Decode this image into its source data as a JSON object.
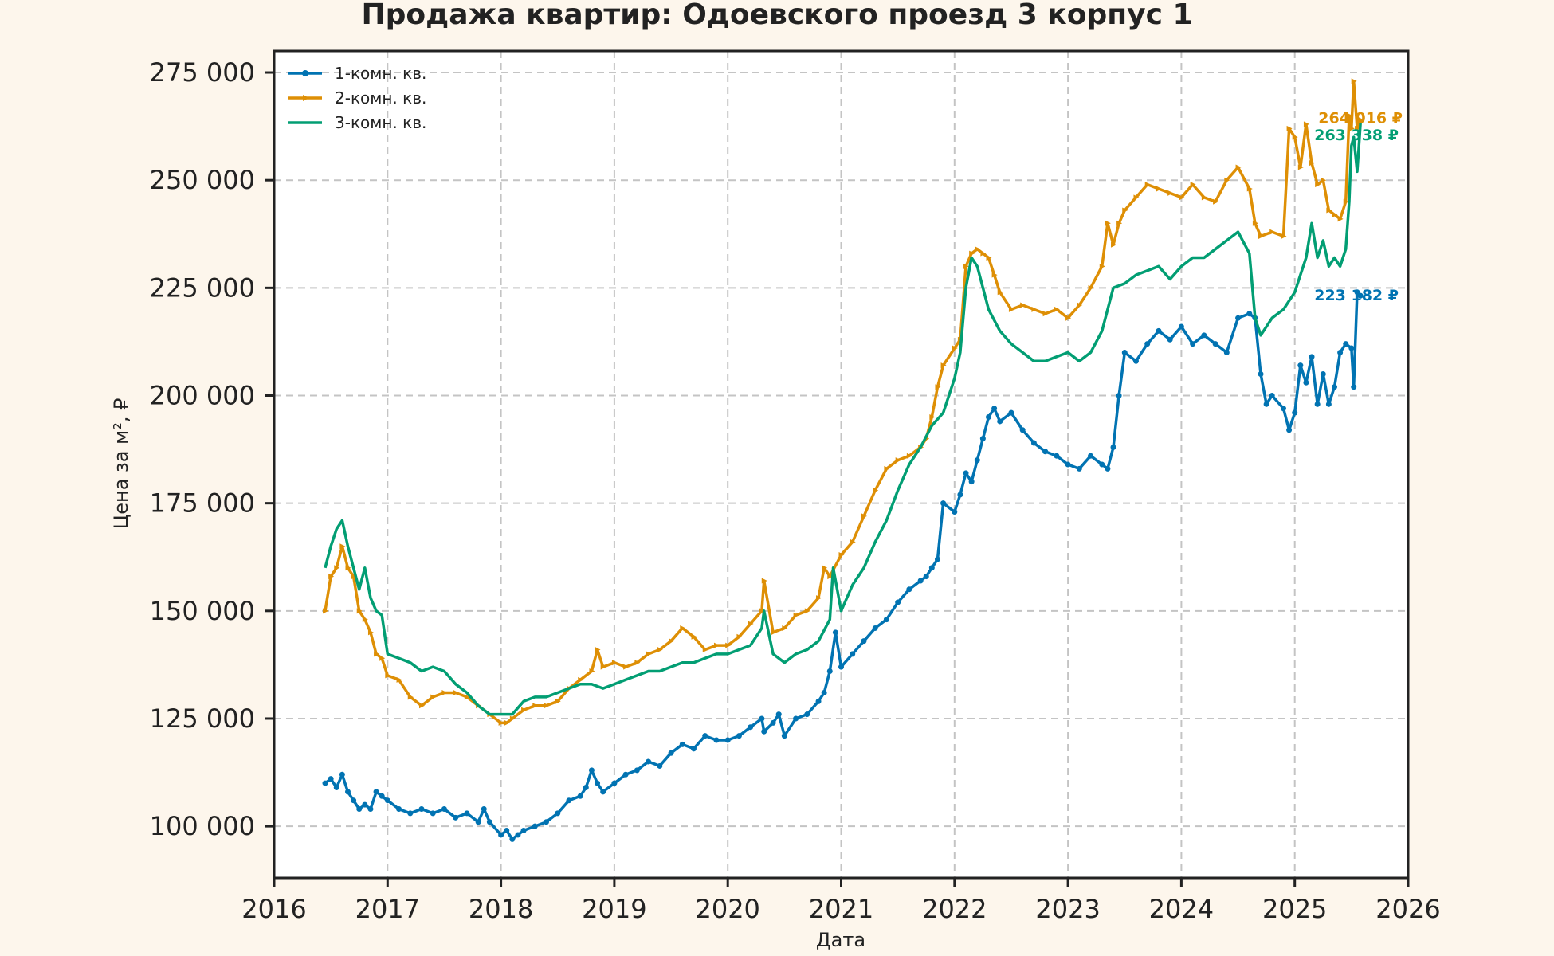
{
  "chart_data": {
    "type": "line",
    "title": "Продажа квартир: Одоевского проезд 3 корпус 1",
    "xlabel": "Дата",
    "ylabel": "Цена за м², ₽",
    "xlim": [
      2016.0,
      2026.0
    ],
    "ylim": [
      88000,
      280000
    ],
    "x_ticks": [
      2016,
      2017,
      2018,
      2019,
      2020,
      2021,
      2022,
      2023,
      2024,
      2025,
      2026
    ],
    "x_tick_labels": [
      "2016",
      "2017",
      "2018",
      "2019",
      "2020",
      "2021",
      "2022",
      "2023",
      "2024",
      "2025",
      "2026"
    ],
    "y_ticks": [
      100000,
      125000,
      150000,
      175000,
      200000,
      225000,
      250000,
      275000
    ],
    "y_tick_labels": [
      "100 000",
      "125 000",
      "150 000",
      "175 000",
      "200 000",
      "225 000",
      "250 000",
      "275 000"
    ],
    "grid": true,
    "legend_position": "top-left",
    "series": [
      {
        "name": "1-комн. кв.",
        "color": "#0173b2",
        "marker": "circle",
        "end_label": "223 182 ₽",
        "x": [
          2016.45,
          2016.5,
          2016.55,
          2016.6,
          2016.65,
          2016.7,
          2016.75,
          2016.8,
          2016.85,
          2016.9,
          2016.95,
          2017.0,
          2017.1,
          2017.2,
          2017.3,
          2017.4,
          2017.5,
          2017.6,
          2017.7,
          2017.8,
          2017.85,
          2017.9,
          2018.0,
          2018.05,
          2018.1,
          2018.15,
          2018.2,
          2018.3,
          2018.4,
          2018.5,
          2018.6,
          2018.7,
          2018.75,
          2018.8,
          2018.85,
          2018.9,
          2019.0,
          2019.1,
          2019.2,
          2019.3,
          2019.4,
          2019.5,
          2019.6,
          2019.7,
          2019.8,
          2019.9,
          2020.0,
          2020.1,
          2020.2,
          2020.3,
          2020.32,
          2020.4,
          2020.45,
          2020.5,
          2020.6,
          2020.7,
          2020.8,
          2020.85,
          2020.9,
          2020.95,
          2021.0,
          2021.1,
          2021.2,
          2021.3,
          2021.4,
          2021.5,
          2021.6,
          2021.7,
          2021.75,
          2021.8,
          2021.85,
          2021.9,
          2022.0,
          2022.05,
          2022.1,
          2022.15,
          2022.2,
          2022.25,
          2022.3,
          2022.35,
          2022.4,
          2022.5,
          2022.6,
          2022.7,
          2022.8,
          2022.9,
          2023.0,
          2023.1,
          2023.2,
          2023.3,
          2023.35,
          2023.4,
          2023.45,
          2023.5,
          2023.6,
          2023.7,
          2023.8,
          2023.9,
          2024.0,
          2024.1,
          2024.2,
          2024.3,
          2024.4,
          2024.5,
          2024.6,
          2024.65,
          2024.7,
          2024.75,
          2024.8,
          2024.9,
          2024.95,
          2025.0,
          2025.05,
          2025.1,
          2025.15,
          2025.2,
          2025.25,
          2025.3,
          2025.35,
          2025.4,
          2025.45,
          2025.5,
          2025.52,
          2025.55,
          2025.58
        ],
        "values": [
          110000,
          111000,
          109000,
          112000,
          108000,
          106000,
          104000,
          105000,
          104000,
          108000,
          107000,
          106000,
          104000,
          103000,
          104000,
          103000,
          104000,
          102000,
          103000,
          101000,
          104000,
          101000,
          98000,
          99000,
          97000,
          98000,
          99000,
          100000,
          101000,
          103000,
          106000,
          107000,
          109000,
          113000,
          110000,
          108000,
          110000,
          112000,
          113000,
          115000,
          114000,
          117000,
          119000,
          118000,
          121000,
          120000,
          120000,
          121000,
          123000,
          125000,
          122000,
          124000,
          126000,
          121000,
          125000,
          126000,
          129000,
          131000,
          136000,
          145000,
          137000,
          140000,
          143000,
          146000,
          148000,
          152000,
          155000,
          157000,
          158000,
          160000,
          162000,
          175000,
          173000,
          177000,
          182000,
          180000,
          185000,
          190000,
          195000,
          197000,
          194000,
          196000,
          192000,
          189000,
          187000,
          186000,
          184000,
          183000,
          186000,
          184000,
          183000,
          188000,
          200000,
          210000,
          208000,
          212000,
          215000,
          213000,
          216000,
          212000,
          214000,
          212000,
          210000,
          218000,
          219000,
          218000,
          205000,
          198000,
          200000,
          197000,
          192000,
          196000,
          207000,
          203000,
          209000,
          198000,
          205000,
          198000,
          202000,
          210000,
          212000,
          211000,
          202000,
          224000,
          223182
        ]
      },
      {
        "name": "2-комн. кв.",
        "color": "#de8f05",
        "marker": "triangle",
        "end_label": "264 016 ₽",
        "x": [
          2016.45,
          2016.5,
          2016.55,
          2016.6,
          2016.65,
          2016.7,
          2016.75,
          2016.8,
          2016.85,
          2016.9,
          2016.95,
          2017.0,
          2017.1,
          2017.2,
          2017.3,
          2017.4,
          2017.5,
          2017.6,
          2017.7,
          2017.8,
          2017.9,
          2018.0,
          2018.05,
          2018.1,
          2018.2,
          2018.3,
          2018.4,
          2018.5,
          2018.6,
          2018.7,
          2018.8,
          2018.85,
          2018.9,
          2019.0,
          2019.1,
          2019.2,
          2019.3,
          2019.4,
          2019.5,
          2019.6,
          2019.7,
          2019.8,
          2019.9,
          2020.0,
          2020.1,
          2020.2,
          2020.3,
          2020.32,
          2020.4,
          2020.5,
          2020.6,
          2020.7,
          2020.8,
          2020.85,
          2020.9,
          2021.0,
          2021.1,
          2021.2,
          2021.3,
          2021.4,
          2021.5,
          2021.6,
          2021.7,
          2021.75,
          2021.8,
          2021.85,
          2021.9,
          2022.0,
          2022.05,
          2022.1,
          2022.15,
          2022.2,
          2022.25,
          2022.3,
          2022.35,
          2022.4,
          2022.5,
          2022.6,
          2022.7,
          2022.8,
          2022.9,
          2023.0,
          2023.1,
          2023.2,
          2023.3,
          2023.35,
          2023.4,
          2023.45,
          2023.5,
          2023.6,
          2023.7,
          2023.8,
          2023.9,
          2024.0,
          2024.1,
          2024.2,
          2024.3,
          2024.4,
          2024.5,
          2024.6,
          2024.65,
          2024.7,
          2024.8,
          2024.9,
          2024.95,
          2025.0,
          2025.05,
          2025.1,
          2025.15,
          2025.2,
          2025.25,
          2025.3,
          2025.35,
          2025.4,
          2025.45,
          2025.48,
          2025.5,
          2025.52,
          2025.55,
          2025.58
        ],
        "values": [
          150000,
          158000,
          160000,
          165000,
          160000,
          158000,
          150000,
          148000,
          145000,
          140000,
          139000,
          135000,
          134000,
          130000,
          128000,
          130000,
          131000,
          131000,
          130000,
          128000,
          126000,
          124000,
          124000,
          125000,
          127000,
          128000,
          128000,
          129000,
          132000,
          134000,
          136000,
          141000,
          137000,
          138000,
          137000,
          138000,
          140000,
          141000,
          143000,
          146000,
          144000,
          141000,
          142000,
          142000,
          144000,
          147000,
          150000,
          157000,
          145000,
          146000,
          149000,
          150000,
          153000,
          160000,
          158000,
          163000,
          166000,
          172000,
          178000,
          183000,
          185000,
          186000,
          188000,
          190000,
          195000,
          202000,
          207000,
          211000,
          213000,
          230000,
          233000,
          234000,
          233000,
          232000,
          228000,
          224000,
          220000,
          221000,
          220000,
          219000,
          220000,
          218000,
          221000,
          225000,
          230000,
          240000,
          235000,
          240000,
          243000,
          246000,
          249000,
          248000,
          247000,
          246000,
          249000,
          246000,
          245000,
          250000,
          253000,
          248000,
          240000,
          237000,
          238000,
          237000,
          262000,
          260000,
          253000,
          263000,
          254000,
          249000,
          250000,
          243000,
          242000,
          241000,
          245000,
          265000,
          262000,
          273000,
          262000,
          264016
        ]
      },
      {
        "name": "3-комн. кв.",
        "color": "#029e73",
        "marker": "none",
        "end_label": "263 338 ₽",
        "x": [
          2016.45,
          2016.5,
          2016.55,
          2016.6,
          2016.65,
          2016.7,
          2016.75,
          2016.8,
          2016.85,
          2016.9,
          2016.95,
          2017.0,
          2017.1,
          2017.2,
          2017.3,
          2017.4,
          2017.5,
          2017.6,
          2017.7,
          2017.8,
          2017.9,
          2018.0,
          2018.1,
          2018.2,
          2018.3,
          2018.4,
          2018.5,
          2018.6,
          2018.7,
          2018.8,
          2018.9,
          2019.0,
          2019.1,
          2019.2,
          2019.3,
          2019.4,
          2019.5,
          2019.6,
          2019.7,
          2019.8,
          2019.9,
          2020.0,
          2020.1,
          2020.2,
          2020.3,
          2020.32,
          2020.4,
          2020.5,
          2020.6,
          2020.7,
          2020.8,
          2020.9,
          2020.93,
          2021.0,
          2021.1,
          2021.2,
          2021.3,
          2021.4,
          2021.5,
          2021.6,
          2021.7,
          2021.8,
          2021.9,
          2022.0,
          2022.05,
          2022.1,
          2022.15,
          2022.2,
          2022.25,
          2022.3,
          2022.4,
          2022.5,
          2022.6,
          2022.7,
          2022.8,
          2022.9,
          2023.0,
          2023.1,
          2023.2,
          2023.3,
          2023.4,
          2023.5,
          2023.6,
          2023.7,
          2023.8,
          2023.9,
          2024.0,
          2024.1,
          2024.2,
          2024.3,
          2024.4,
          2024.5,
          2024.6,
          2024.65,
          2024.7,
          2024.8,
          2024.9,
          2025.0,
          2025.05,
          2025.1,
          2025.15,
          2025.2,
          2025.25,
          2025.3,
          2025.35,
          2025.4,
          2025.45,
          2025.48,
          2025.5,
          2025.52,
          2025.55,
          2025.58
        ],
        "values": [
          160000,
          165000,
          169000,
          171000,
          165000,
          160000,
          155000,
          160000,
          153000,
          150000,
          149000,
          140000,
          139000,
          138000,
          136000,
          137000,
          136000,
          133000,
          131000,
          128000,
          126000,
          126000,
          126000,
          129000,
          130000,
          130000,
          131000,
          132000,
          133000,
          133000,
          132000,
          133000,
          134000,
          135000,
          136000,
          136000,
          137000,
          138000,
          138000,
          139000,
          140000,
          140000,
          141000,
          142000,
          146000,
          150000,
          140000,
          138000,
          140000,
          141000,
          143000,
          148000,
          160000,
          150000,
          156000,
          160000,
          166000,
          171000,
          178000,
          184000,
          188000,
          193000,
          196000,
          204000,
          210000,
          225000,
          232000,
          230000,
          225000,
          220000,
          215000,
          212000,
          210000,
          208000,
          208000,
          209000,
          210000,
          208000,
          210000,
          215000,
          225000,
          226000,
          228000,
          229000,
          230000,
          227000,
          230000,
          232000,
          232000,
          234000,
          236000,
          238000,
          233000,
          218000,
          214000,
          218000,
          220000,
          224000,
          228000,
          232000,
          240000,
          232000,
          236000,
          230000,
          232000,
          230000,
          234000,
          245000,
          258000,
          260000,
          252000,
          263338
        ]
      }
    ]
  }
}
